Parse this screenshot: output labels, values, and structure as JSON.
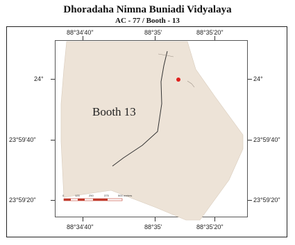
{
  "header": {
    "title": "Dhoradaha Nimna Buniadi Vidyalaya",
    "subtitle": "AC - 77 / Booth - 13"
  },
  "map": {
    "label": "Booth 13",
    "polygon_color": "#ede3d7",
    "boundary_line_color": "#333333",
    "marker_color": "#e0201d",
    "coordinates": {
      "top": [
        "88°34'40\"",
        "88°35'",
        "88°35'20\""
      ],
      "bottom": [
        "88°34'40\"",
        "88°35'",
        "88°35'20\""
      ],
      "left": [
        "24°",
        "23°59'40\"",
        "23°59'20\""
      ],
      "right": [
        "24°",
        "23°59'40\"",
        "23°59'20\""
      ]
    },
    "scale_bar": {
      "labels": [
        "0",
        "125",
        "250",
        "375",
        "500"
      ],
      "unit": "meters",
      "color": "#c0392b"
    }
  }
}
